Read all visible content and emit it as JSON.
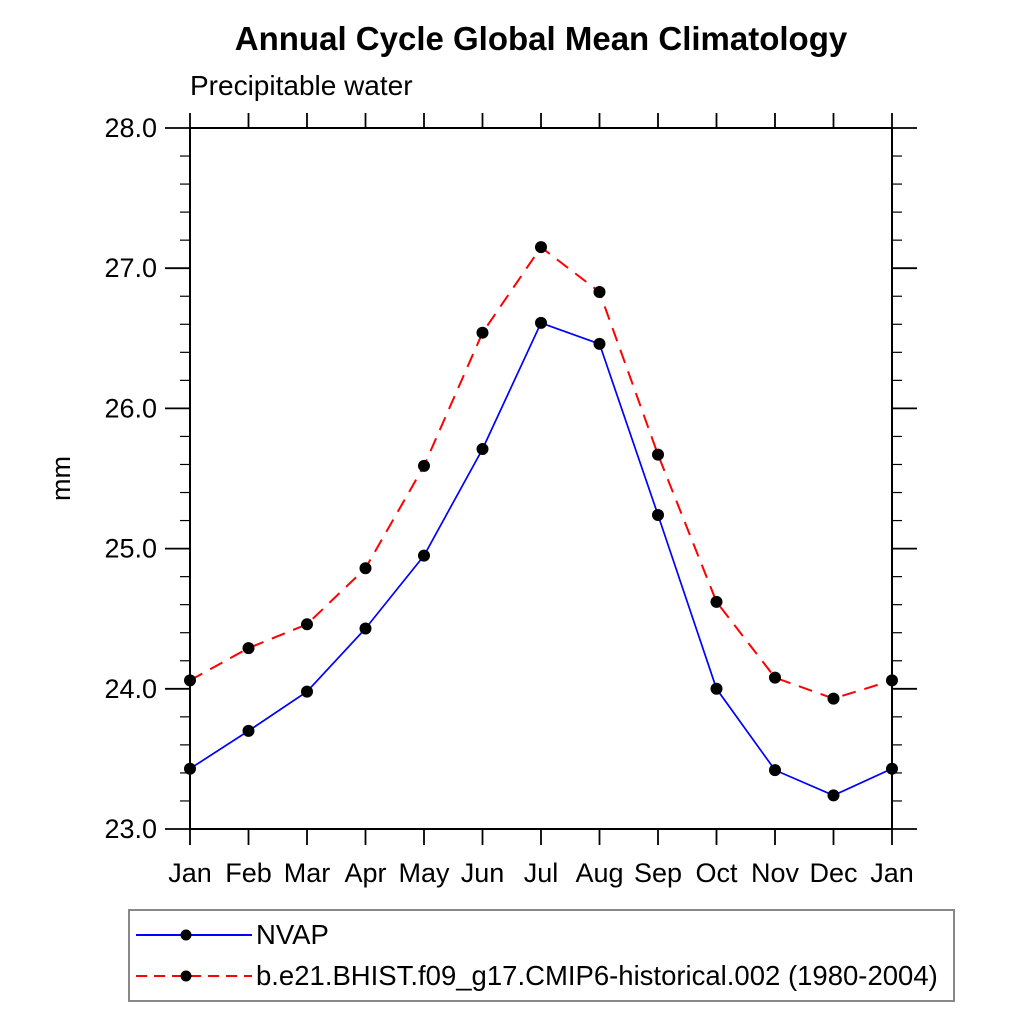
{
  "header": {
    "title": "Annual Cycle Global Mean Climatology",
    "subtitle": "Precipitable water"
  },
  "chart_data": {
    "type": "line",
    "title": "Annual Cycle Global Mean Climatology",
    "subtitle": "Precipitable water",
    "xlabel": "",
    "ylabel": "mm",
    "x_categories": [
      "Jan",
      "Feb",
      "Mar",
      "Apr",
      "May",
      "Jun",
      "Jul",
      "Aug",
      "Sep",
      "Oct",
      "Nov",
      "Dec",
      "Jan"
    ],
    "ylim": [
      23.0,
      28.0
    ],
    "y_major_tick_step": 1.0,
    "y_minor_tick_step": 0.2,
    "y_tick_labels": [
      "23.0",
      "24.0",
      "25.0",
      "26.0",
      "27.0",
      "28.0"
    ],
    "grid": false,
    "legend_position": "bottom-left-outside",
    "axis_color": "#000000",
    "marker_color": "#000000",
    "series": [
      {
        "name": "NVAP",
        "color": "#0000ff",
        "line_style": "solid",
        "marker": "circle",
        "values": [
          23.43,
          23.7,
          23.98,
          24.43,
          24.95,
          25.71,
          26.61,
          26.46,
          25.24,
          24.0,
          23.42,
          23.24,
          23.43
        ]
      },
      {
        "name": "b.e21.BHIST.f09_g17.CMIP6-historical.002 (1980-2004)",
        "color": "#ff0000",
        "line_style": "dashed",
        "marker": "circle",
        "values": [
          24.06,
          24.29,
          24.46,
          24.86,
          25.59,
          26.54,
          27.15,
          26.83,
          25.67,
          24.62,
          24.08,
          23.93,
          24.06
        ]
      }
    ]
  }
}
